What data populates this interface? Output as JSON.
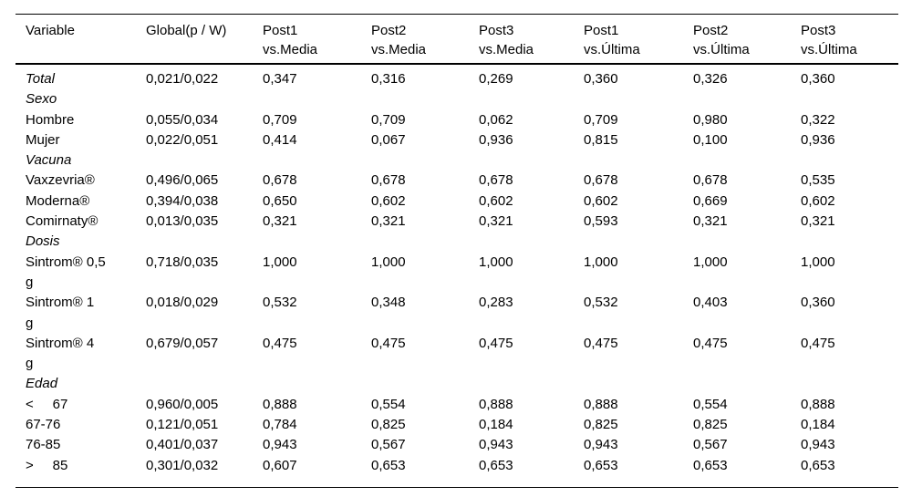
{
  "table": {
    "columns": [
      "Variable",
      "Global(p / W)",
      "Post1\nvs.Media",
      "Post2\nvs.Media",
      "Post3\nvs.Media",
      "Post1\nvs.Última",
      "Post2\nvs.Última",
      "Post3\nvs.Última"
    ],
    "rows": [
      {
        "label": "Total",
        "italic": true,
        "values": [
          "0,021/0,022",
          "0,347",
          "0,316",
          "0,269",
          "0,360",
          "0,326",
          "0,360"
        ]
      },
      {
        "label": "Sexo",
        "italic": true,
        "values": []
      },
      {
        "label": "Hombre",
        "values": [
          "0,055/0,034",
          "0,709",
          "0,709",
          "0,062",
          "0,709",
          "0,980",
          "0,322"
        ]
      },
      {
        "label": "Mujer",
        "values": [
          "0,022/0,051",
          "0,414",
          "0,067",
          "0,936",
          "0,815",
          "0,100",
          "0,936"
        ]
      },
      {
        "label": "Vacuna",
        "italic": true,
        "values": []
      },
      {
        "label": "Vaxzevria®",
        "values": [
          "0,496/0,065",
          "0,678",
          "0,678",
          "0,678",
          "0,678",
          "0,678",
          "0,535"
        ]
      },
      {
        "label": "Moderna®",
        "values": [
          "0,394/0,038",
          "0,650",
          "0,602",
          "0,602",
          "0,602",
          "0,669",
          "0,602"
        ]
      },
      {
        "label": "Comirnaty®",
        "values": [
          "0,013/0,035",
          "0,321",
          "0,321",
          "0,321",
          "0,593",
          "0,321",
          "0,321"
        ]
      },
      {
        "label": "Dosis",
        "italic": true,
        "values": []
      },
      {
        "label": "Sintrom® 0,5\ng",
        "values": [
          "0,718/0,035",
          "1,000",
          "1,000",
          "1,000",
          "1,000",
          "1,000",
          "1,000"
        ]
      },
      {
        "label": "Sintrom® 1\ng",
        "values": [
          "0,018/0,029",
          "0,532",
          "0,348",
          "0,283",
          "0,532",
          "0,403",
          "0,360"
        ]
      },
      {
        "label": "Sintrom® 4\ng",
        "values": [
          "0,679/0,057",
          "0,475",
          "0,475",
          "0,475",
          "0,475",
          "0,475",
          "0,475"
        ]
      },
      {
        "label": "Edad",
        "italic": true,
        "values": []
      },
      {
        "label": "<     67",
        "values": [
          "0,960/0,005",
          "0,888",
          "0,554",
          "0,888",
          "0,888",
          "0,554",
          "0,888"
        ]
      },
      {
        "label": "67-76",
        "values": [
          "0,121/0,051",
          "0,784",
          "0,825",
          "0,184",
          "0,825",
          "0,825",
          "0,184"
        ]
      },
      {
        "label": "76-85",
        "values": [
          "0,401/0,037",
          "0,943",
          "0,567",
          "0,943",
          "0,943",
          "0,567",
          "0,943"
        ]
      },
      {
        "label": ">     85",
        "values": [
          "0,301/0,032",
          "0,607",
          "0,653",
          "0,653",
          "0,653",
          "0,653",
          "0,653"
        ]
      }
    ]
  }
}
